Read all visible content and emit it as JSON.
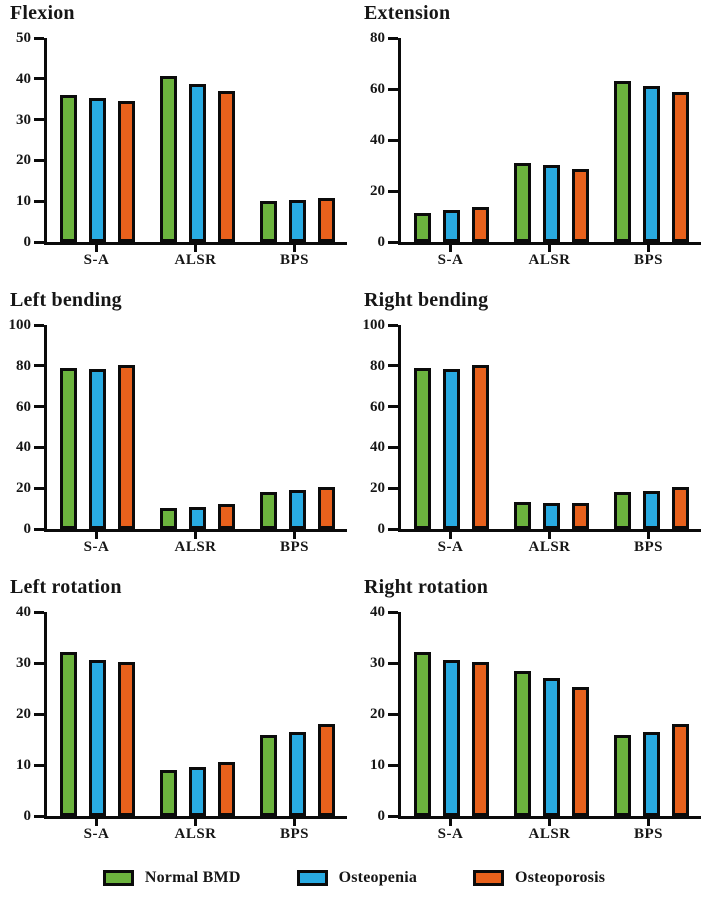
{
  "legend": {
    "items": [
      {
        "label": "Normal BMD",
        "color": "#6CB33E"
      },
      {
        "label": "Osteopenia",
        "color": "#29ABE2"
      },
      {
        "label": "Osteoporosis",
        "color": "#E8611C"
      }
    ]
  },
  "colors": {
    "axis": "#0b0b0b",
    "text": "#161616",
    "background": "#ffffff"
  },
  "chart_data": [
    {
      "type": "bar",
      "title": "Flexion",
      "categories": [
        "S-A",
        "ALSR",
        "BPS"
      ],
      "ylim": [
        0,
        50
      ],
      "yticks": [
        0,
        10,
        20,
        30,
        40,
        50
      ],
      "grid": false,
      "series": [
        {
          "name": "Normal BMD",
          "values": [
            36.0,
            40.7,
            10.0
          ]
        },
        {
          "name": "Osteopenia",
          "values": [
            35.3,
            38.8,
            10.4
          ]
        },
        {
          "name": "Osteoporosis",
          "values": [
            34.6,
            36.9,
            10.8
          ]
        }
      ]
    },
    {
      "type": "bar",
      "title": "Extension",
      "categories": [
        "S-A",
        "ALSR",
        "BPS"
      ],
      "ylim": [
        0,
        80
      ],
      "yticks": [
        0,
        20,
        40,
        60,
        80
      ],
      "grid": false,
      "series": [
        {
          "name": "Normal BMD",
          "values": [
            11.5,
            30.9,
            63.0
          ]
        },
        {
          "name": "Osteopenia",
          "values": [
            12.4,
            30.0,
            61.0
          ]
        },
        {
          "name": "Osteoporosis",
          "values": [
            13.8,
            28.6,
            59.0
          ]
        }
      ]
    },
    {
      "type": "bar",
      "title": "Left bending",
      "categories": [
        "S-A",
        "ALSR",
        "BPS"
      ],
      "ylim": [
        0,
        100
      ],
      "yticks": [
        0,
        20,
        40,
        60,
        80,
        100
      ],
      "grid": false,
      "series": [
        {
          "name": "Normal BMD",
          "values": [
            79.0,
            10.4,
            17.9
          ]
        },
        {
          "name": "Osteopenia",
          "values": [
            78.3,
            10.9,
            18.9
          ]
        },
        {
          "name": "Osteoporosis",
          "values": [
            80.6,
            12.4,
            20.5
          ]
        }
      ]
    },
    {
      "type": "bar",
      "title": "Right bending",
      "categories": [
        "S-A",
        "ALSR",
        "BPS"
      ],
      "ylim": [
        0,
        100
      ],
      "yticks": [
        0,
        20,
        40,
        60,
        80,
        100
      ],
      "grid": false,
      "series": [
        {
          "name": "Normal BMD",
          "values": [
            79.0,
            13.1,
            17.9
          ]
        },
        {
          "name": "Osteopenia",
          "values": [
            78.3,
            12.6,
            18.8
          ]
        },
        {
          "name": "Osteoporosis",
          "values": [
            80.6,
            12.9,
            20.5
          ]
        }
      ]
    },
    {
      "type": "bar",
      "title": "Left rotation",
      "categories": [
        "S-A",
        "ALSR",
        "BPS"
      ],
      "ylim": [
        0,
        40
      ],
      "yticks": [
        0,
        10,
        20,
        30,
        40
      ],
      "grid": false,
      "series": [
        {
          "name": "Normal BMD",
          "values": [
            32.1,
            9.0,
            15.9
          ]
        },
        {
          "name": "Osteopenia",
          "values": [
            30.5,
            9.6,
            16.5
          ]
        },
        {
          "name": "Osteoporosis",
          "values": [
            30.2,
            10.5,
            18.0
          ]
        }
      ]
    },
    {
      "type": "bar",
      "title": "Right rotation",
      "categories": [
        "S-A",
        "ALSR",
        "BPS"
      ],
      "ylim": [
        0,
        40
      ],
      "yticks": [
        0,
        10,
        20,
        30,
        40
      ],
      "grid": false,
      "series": [
        {
          "name": "Normal BMD",
          "values": [
            32.1,
            28.5,
            15.9
          ]
        },
        {
          "name": "Osteopenia",
          "values": [
            30.5,
            27.0,
            16.5
          ]
        },
        {
          "name": "Osteoporosis",
          "values": [
            30.2,
            25.2,
            18.0
          ]
        }
      ]
    }
  ]
}
